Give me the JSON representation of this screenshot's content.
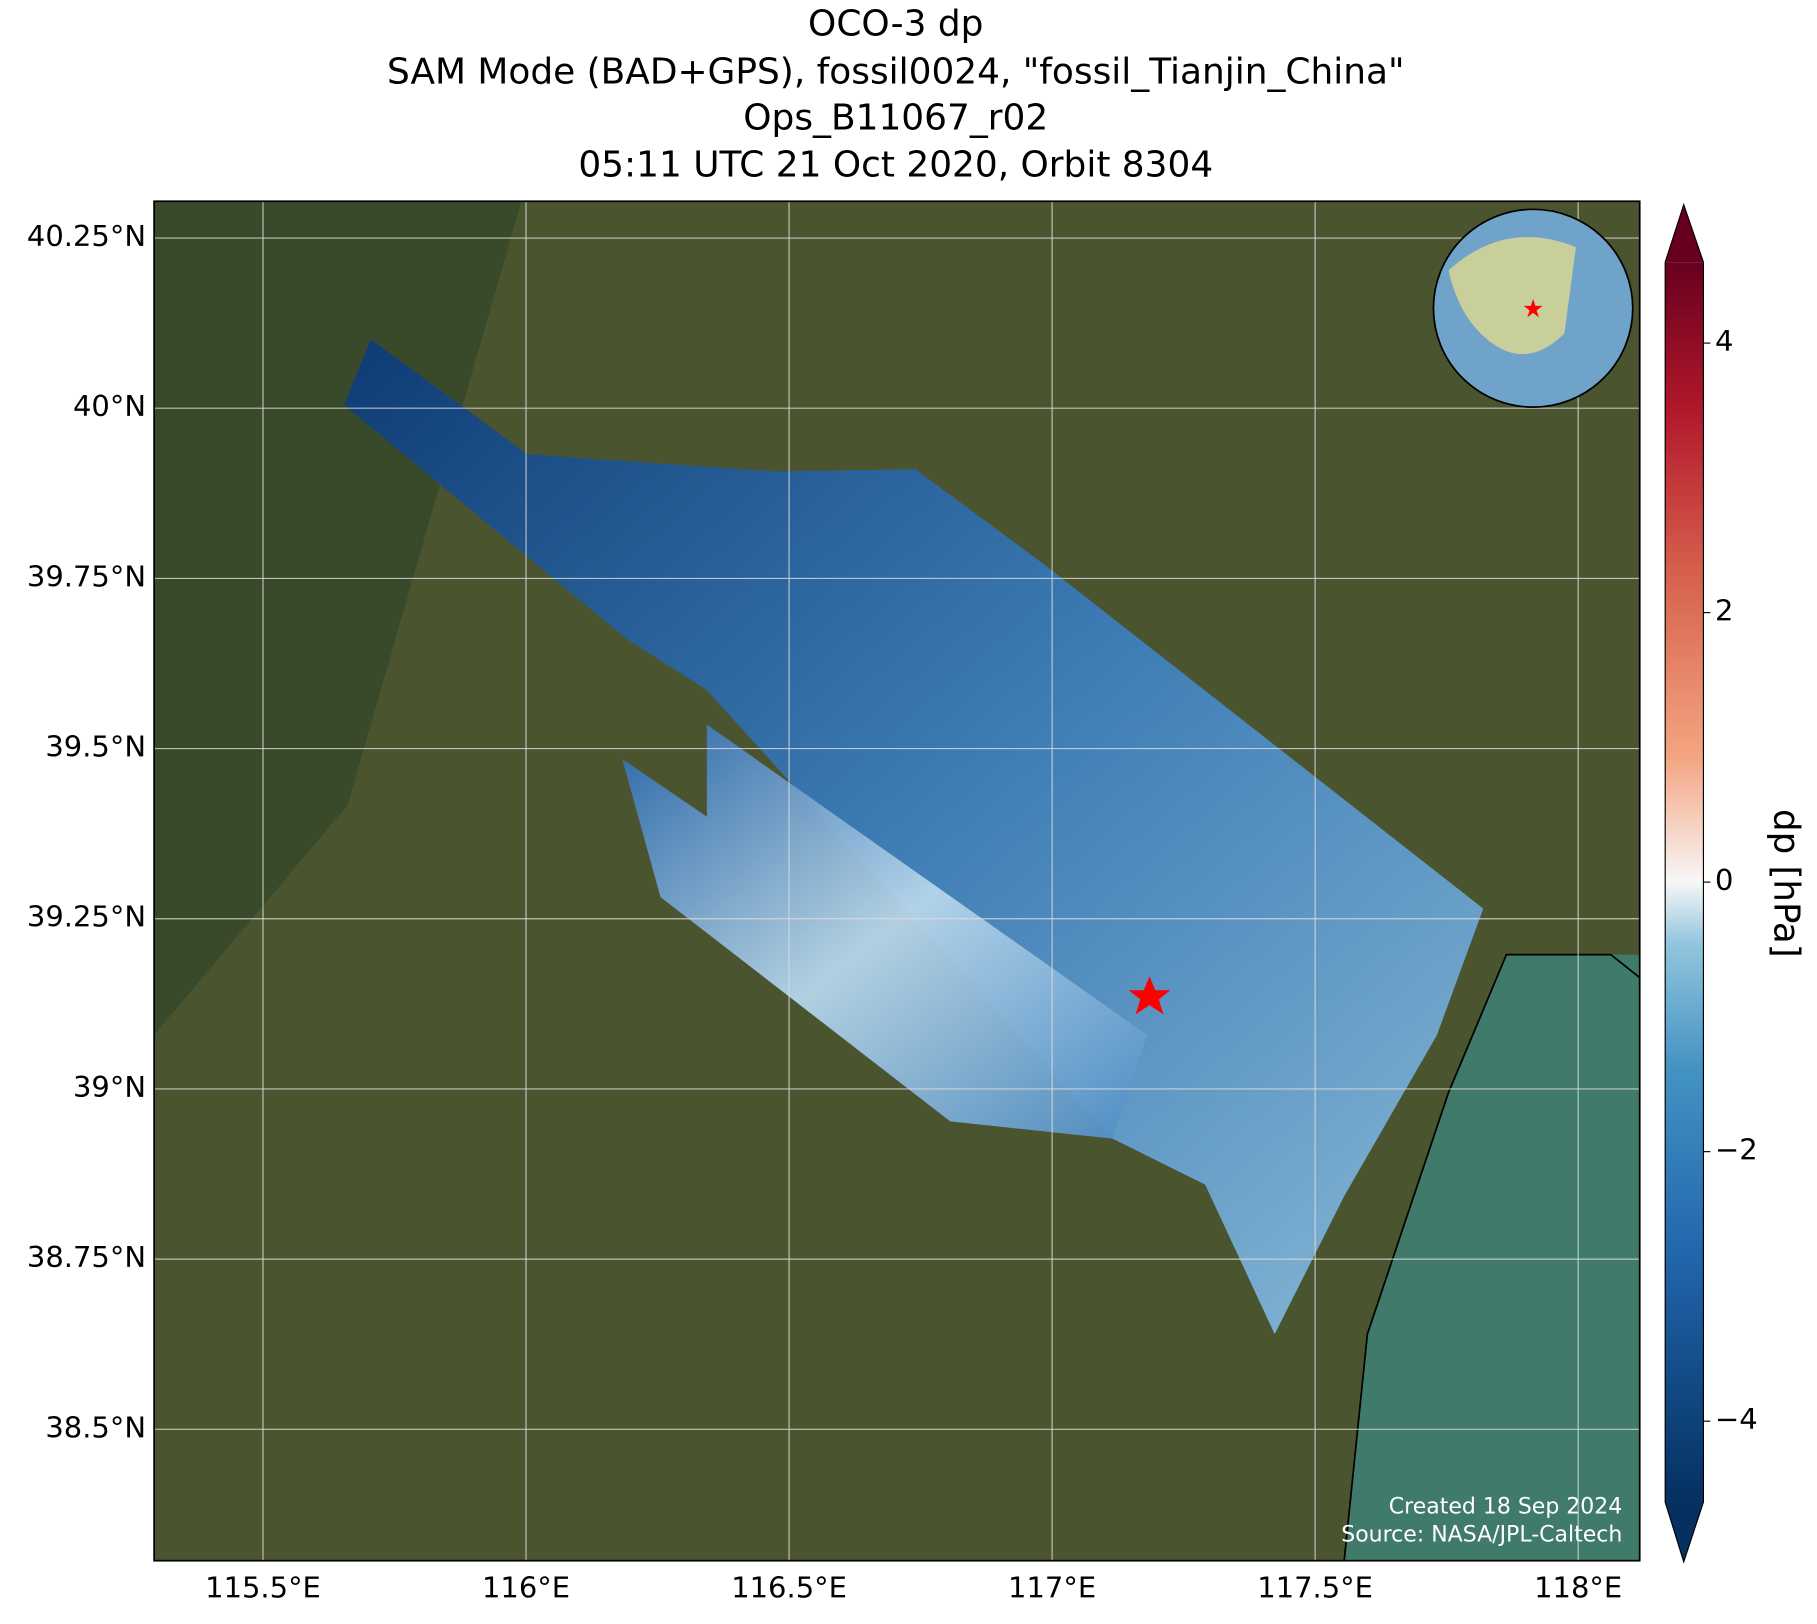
{
  "chart_data": {
    "type": "map",
    "title": [
      "OCO-3 dp",
      "SAM Mode (BAD+GPS), fossil0024, \"fossil_Tianjin_China\"",
      "Ops_B11067_r02",
      "05:11 UTC 21 Oct 2020, Orbit 8304"
    ],
    "xlim": [
      115.293,
      118.117
    ],
    "ylim": [
      38.307,
      40.304
    ],
    "xticks": [
      {
        "value": 115.5,
        "label": "115.5°E"
      },
      {
        "value": 116,
        "label": "116°E"
      },
      {
        "value": 116.5,
        "label": "116.5°E"
      },
      {
        "value": 117,
        "label": "117°E"
      },
      {
        "value": 117.5,
        "label": "117.5°E"
      },
      {
        "value": 118,
        "label": "118°E"
      }
    ],
    "yticks": [
      {
        "value": 38.5,
        "label": "38.5°N"
      },
      {
        "value": 38.75,
        "label": "38.75°N"
      },
      {
        "value": 39,
        "label": "39°N"
      },
      {
        "value": 39.25,
        "label": "39.25°N"
      },
      {
        "value": 39.5,
        "label": "39.5°N"
      },
      {
        "value": 39.75,
        "label": "39.75°N"
      },
      {
        "value": 40,
        "label": "40°N"
      },
      {
        "value": 40.25,
        "label": "40.25°N"
      }
    ],
    "grid": true,
    "colorbar": {
      "label": "dp [hPa]",
      "clim": [
        -4.6,
        4.6
      ],
      "ticks": [
        {
          "value": -4,
          "label": "−4"
        },
        {
          "value": -2,
          "label": "−2"
        },
        0,
        2,
        4
      ]
    },
    "footer": [
      "Created 18 Sep 2024",
      "Source: NASA/JPL-Caltech"
    ]
  }
}
